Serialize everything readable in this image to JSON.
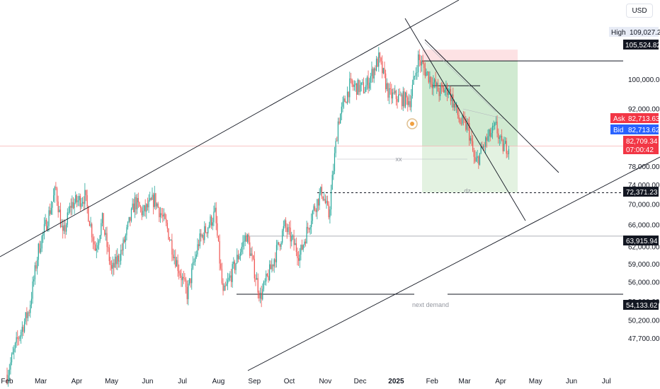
{
  "currency_button": "USD",
  "colors": {
    "up": "#26a69a",
    "down": "#ef5350",
    "line": "#131722",
    "target_zone": "#c8e6c9",
    "stop_zone": "#fde2e4",
    "ask_tag": "#f23645",
    "bid_tag": "#2962ff",
    "price_tag": "#f23645"
  },
  "price_scale": {
    "ticks": [
      "100,000.00",
      "92,000.00",
      "78,000.00",
      "74,000.00",
      "70,000.00",
      "66,000.00",
      "62,000.00",
      "59,000.00",
      "56,000.00",
      "53,000.00",
      "50,200.00",
      "47,700.00"
    ]
  },
  "time_scale": {
    "ticks": [
      "Feb",
      "Mar",
      "Apr",
      "May",
      "Jun",
      "Jul",
      "Aug",
      "Sep",
      "Oct",
      "Nov",
      "Dec",
      "2025",
      "Feb",
      "Mar",
      "Apr",
      "May",
      "Jun",
      "Jul"
    ]
  },
  "tags": {
    "high_label": "High",
    "high_value": "109,027.22",
    "level_top": "105,524.82",
    "ask_label": "Ask",
    "ask_value": "82,713.63",
    "bid_label": "Bid",
    "bid_value": "82,713.62",
    "last_price": "82,709.34",
    "countdown": "07:00:42",
    "level_dz": "72,371.23",
    "level_mid": "63,915.94",
    "level_demand": "54,133.62"
  },
  "annotations": {
    "dz": "dz",
    "next_demand": "next demand",
    "xx": "xx"
  },
  "chart_data": {
    "type": "candlestick",
    "title": "",
    "ylabel": "",
    "xlabel": "",
    "scale": "log",
    "ylim": [
      46000,
      112000
    ],
    "x_range": [
      "2024-02",
      "2025-07"
    ],
    "last_price": 82709.34,
    "ask": 82713.63,
    "bid": 82713.62,
    "high": 109027.22,
    "horizontal_levels": [
      105524.82,
      72371.23,
      63915.94,
      54133.62
    ],
    "position": {
      "type": "long",
      "entry": 82700,
      "stop": 109000,
      "target": 72371.23
    },
    "keyframes": [
      [
        "2024-02-01",
        43000
      ],
      [
        "2024-02-10",
        47500
      ],
      [
        "2024-02-20",
        51800
      ],
      [
        "2024-02-28",
        61500
      ],
      [
        "2024-03-06",
        66500
      ],
      [
        "2024-03-14",
        73100
      ],
      [
        "2024-03-20",
        63800
      ],
      [
        "2024-03-27",
        69900
      ],
      [
        "2024-04-08",
        71600
      ],
      [
        "2024-04-17",
        61600
      ],
      [
        "2024-04-23",
        66800
      ],
      [
        "2024-05-01",
        57800
      ],
      [
        "2024-05-10",
        61500
      ],
      [
        "2024-05-21",
        70500
      ],
      [
        "2024-05-28",
        68300
      ],
      [
        "2024-06-07",
        71100
      ],
      [
        "2024-06-18",
        65200
      ],
      [
        "2024-06-24",
        60500
      ],
      [
        "2024-07-05",
        54200
      ],
      [
        "2024-07-15",
        62800
      ],
      [
        "2024-07-29",
        68200
      ],
      [
        "2024-08-05",
        53900
      ],
      [
        "2024-08-15",
        58800
      ],
      [
        "2024-08-25",
        64200
      ],
      [
        "2024-09-06",
        53700
      ],
      [
        "2024-09-15",
        58200
      ],
      [
        "2024-09-27",
        65800
      ],
      [
        "2024-10-10",
        60500
      ],
      [
        "2024-10-21",
        68500
      ],
      [
        "2024-10-29",
        72700
      ],
      [
        "2024-11-04",
        67800
      ],
      [
        "2024-11-12",
        88700
      ],
      [
        "2024-11-22",
        98300
      ],
      [
        "2024-12-05",
        97500
      ],
      [
        "2024-12-17",
        106100
      ],
      [
        "2024-12-26",
        95700
      ],
      [
        "2025-01-09",
        94500
      ],
      [
        "2025-01-13",
        94400
      ],
      [
        "2025-01-20",
        106200
      ],
      [
        "2025-01-27",
        102100
      ],
      [
        "2025-02-07",
        96600
      ],
      [
        "2025-02-15",
        97500
      ],
      [
        "2025-02-25",
        88700
      ],
      [
        "2025-03-04",
        87200
      ],
      [
        "2025-03-10",
        78500
      ],
      [
        "2025-03-20",
        84200
      ],
      [
        "2025-03-28",
        87300
      ],
      [
        "2025-04-02",
        82500
      ],
      [
        "2025-04-08",
        82709
      ]
    ]
  }
}
